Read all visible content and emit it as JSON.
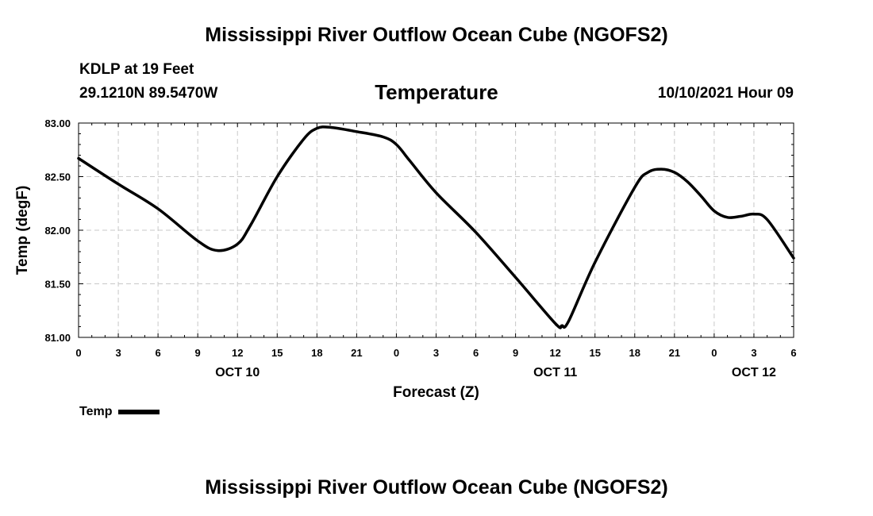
{
  "header": {
    "title": "Mississippi River Outflow Ocean Cube (NGOFS2)",
    "station": "KDLP at 19 Feet",
    "coords": "29.1210N  89.5470W",
    "subtitle": "Temperature",
    "timestamp": "10/10/2021 Hour 09"
  },
  "footer": {
    "title": "Mississippi River Outflow Ocean Cube (NGOFS2)"
  },
  "legend": {
    "label": "Temp"
  },
  "chart_data": {
    "type": "line",
    "title": "Temperature",
    "xlabel": "Forecast (Z)",
    "ylabel": "Temp (degF)",
    "grid": true,
    "xlim": [
      0,
      54
    ],
    "ylim": [
      81.0,
      83.0
    ],
    "x_ticks": [
      0,
      3,
      6,
      9,
      12,
      15,
      18,
      21,
      24,
      27,
      30,
      33,
      36,
      39,
      42,
      45,
      48,
      51,
      54
    ],
    "x_tick_labels": [
      "0",
      "3",
      "6",
      "9",
      "12",
      "15",
      "18",
      "21",
      "0",
      "3",
      "6",
      "9",
      "12",
      "15",
      "18",
      "21",
      "0",
      "3",
      "6"
    ],
    "y_ticks": [
      81.0,
      81.5,
      82.0,
      82.5,
      83.0
    ],
    "y_tick_labels": [
      "81.00",
      "81.50",
      "82.00",
      "82.50",
      "83.00"
    ],
    "day_labels": [
      {
        "x": 12,
        "label": "OCT 10"
      },
      {
        "x": 36,
        "label": "OCT 11"
      },
      {
        "x": 51,
        "label": "OCT 12"
      }
    ],
    "series": [
      {
        "name": "Temp",
        "color": "#000000",
        "x": [
          0,
          3,
          6,
          9,
          10.5,
          12,
          13,
          15,
          17,
          18,
          19,
          21,
          23,
          24,
          25,
          27,
          30,
          33,
          36,
          36.5,
          37,
          39,
          42,
          43,
          44,
          45,
          46,
          47,
          48,
          49,
          50,
          51,
          52,
          54
        ],
        "y": [
          82.67,
          82.43,
          82.2,
          81.9,
          81.81,
          81.87,
          82.05,
          82.5,
          82.85,
          82.95,
          82.96,
          82.92,
          82.87,
          82.8,
          82.65,
          82.35,
          81.98,
          81.56,
          81.13,
          81.11,
          81.15,
          81.7,
          82.4,
          82.54,
          82.57,
          82.54,
          82.45,
          82.32,
          82.18,
          82.12,
          82.13,
          82.15,
          82.1,
          81.74
        ]
      }
    ]
  }
}
